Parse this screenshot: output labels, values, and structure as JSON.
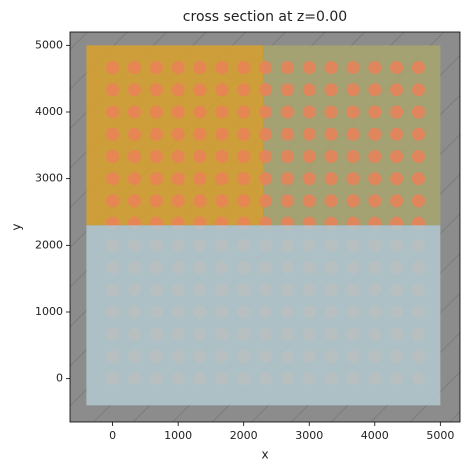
{
  "chart_data": {
    "type": "structure",
    "title": "cross section at z=0.00",
    "x_label": "x",
    "y_label": "y",
    "xlim": [
      -650,
      5300
    ],
    "ylim": [
      -650,
      5200
    ],
    "xticks": [
      0,
      1000,
      2000,
      3000,
      4000,
      5000
    ],
    "yticks": [
      0,
      1000,
      2000,
      3000,
      4000,
      5000
    ],
    "background_color": "#8c8c8c",
    "regions": [
      {
        "x": [
          -400,
          2300
        ],
        "y": [
          2300,
          5000
        ],
        "color": "#d9a12c"
      },
      {
        "x": [
          2300,
          5000
        ],
        "y": [
          2300,
          5000
        ],
        "color": "#a8a46e"
      }
    ],
    "circles": {
      "x": [
        0,
        333,
        667,
        1000,
        1333,
        1667,
        2000,
        2333,
        2667,
        3000,
        3333,
        3667,
        4000,
        4333,
        4667
      ],
      "y": [
        0,
        333,
        667,
        1000,
        1333,
        1667,
        2000,
        2333,
        2667,
        3000,
        3333,
        3667,
        4000,
        4333,
        4667
      ],
      "radius": 100,
      "color": "#ea8158"
    },
    "overlay": {
      "x": [
        -400,
        5000
      ],
      "y": [
        -400,
        2300
      ],
      "color": "#b2c7cd"
    }
  }
}
